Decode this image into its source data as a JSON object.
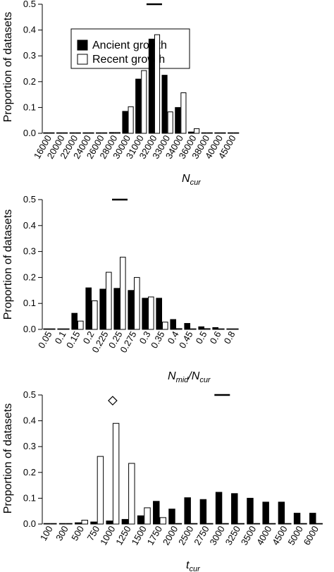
{
  "legend": {
    "labels": [
      "Ancient growth",
      "Recent growth"
    ],
    "colors": [
      "#000000",
      "#ffffff"
    ]
  },
  "chart_data": [
    {
      "type": "bar",
      "ylabel": "Proportion of datasets",
      "xlabel": {
        "base": "N",
        "sub": "cur"
      },
      "ylim": [
        0,
        0.5
      ],
      "yticks": [
        "0.0",
        "0.1",
        "0.2",
        "0.3",
        "0.4",
        "0.5"
      ],
      "categories": [
        "16000",
        "20000",
        "22000",
        "24000",
        "26000",
        "28000",
        "30000",
        "31000",
        "32000",
        "33000",
        "34000",
        "36000",
        "38000",
        "40000",
        "45000"
      ],
      "series": [
        {
          "name": "Ancient growth",
          "color": "#000000",
          "values": [
            0,
            0,
            0,
            0,
            0,
            0.003,
            0.085,
            0.21,
            0.365,
            0.225,
            0.1,
            0.005,
            0,
            0,
            0
          ]
        },
        {
          "name": "Recent growth",
          "color": "#ffffff",
          "values": [
            0,
            0,
            0,
            0,
            0,
            0.003,
            0.103,
            0.243,
            0.382,
            0.083,
            0.157,
            0.018,
            0.002,
            0.001,
            0.002
          ]
        }
      ],
      "marker": {
        "shape": "bar",
        "category_index": 8
      },
      "legend": "top-left"
    },
    {
      "type": "bar",
      "ylabel": "Proportion of datasets",
      "xlabel": {
        "base": "N",
        "sub": "mid",
        "base2": "N",
        "sub2": "cur"
      },
      "ylim": [
        0,
        0.5
      ],
      "yticks": [
        "0.0",
        "0.1",
        "0.2",
        "0.3",
        "0.4",
        "0.5"
      ],
      "categories": [
        "0.05",
        "0.1",
        "0.15",
        "0.2",
        "0.225",
        "0.25",
        "0.275",
        "0.3",
        "0.35",
        "0.4",
        "0.45",
        "0.5",
        "0.6",
        "0.8"
      ],
      "series": [
        {
          "name": "Ancient growth",
          "color": "#000000",
          "values": [
            0,
            0,
            0.062,
            0.16,
            0.155,
            0.158,
            0.15,
            0.12,
            0.12,
            0.038,
            0.023,
            0.01,
            0.007,
            0
          ]
        },
        {
          "name": "Recent growth",
          "color": "#ffffff",
          "values": [
            0,
            0,
            0.032,
            0.11,
            0.22,
            0.278,
            0.2,
            0.125,
            0.028,
            0.003,
            0.002,
            0.003,
            0.002,
            0.001
          ]
        }
      ],
      "marker": {
        "shape": "bar",
        "category_index": 5
      }
    },
    {
      "type": "bar",
      "ylabel": "Proportion of datasets",
      "xlabel": {
        "base": "t",
        "sub": "cur"
      },
      "ylim": [
        0,
        0.5
      ],
      "yticks": [
        "0.0",
        "0.1",
        "0.2",
        "0.3",
        "0.4",
        "0.5"
      ],
      "categories": [
        "100",
        "300",
        "500",
        "750",
        "1000",
        "1250",
        "1500",
        "1750",
        "2000",
        "2500",
        "2750",
        "3000",
        "3250",
        "3500",
        "4000",
        "4500",
        "5000",
        "6000"
      ],
      "series": [
        {
          "name": "Ancient growth",
          "color": "#000000",
          "values": [
            0,
            0,
            0.005,
            0.008,
            0.012,
            0.018,
            0.032,
            0.088,
            0.058,
            0.102,
            0.095,
            0.123,
            0.118,
            0.1,
            0.085,
            0.085,
            0.042,
            0.042
          ]
        },
        {
          "name": "Recent growth",
          "color": "#ffffff",
          "values": [
            0,
            0,
            0.015,
            0.262,
            0.39,
            0.235,
            0.063,
            0.025,
            0,
            0,
            0,
            0,
            0,
            0,
            0,
            0,
            0,
            0
          ]
        }
      ],
      "markers": [
        {
          "shape": "diamond",
          "category_index": 4,
          "y": 0.478
        },
        {
          "shape": "bar",
          "category_index": 11,
          "y": 0.5
        }
      ]
    }
  ]
}
